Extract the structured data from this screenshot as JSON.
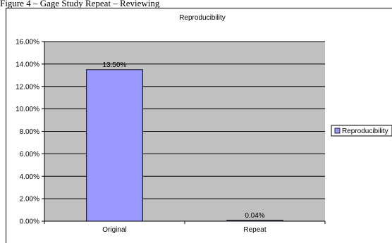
{
  "caption": "Figure 4 – Gage Study Repeat – Reviewing",
  "chart_data": {
    "type": "bar",
    "title": "Reproducibility",
    "categories": [
      "Original",
      "Repeat"
    ],
    "series": [
      {
        "name": "Reproducibility",
        "values": [
          13.5,
          0.04
        ],
        "color": "#9999ff"
      }
    ],
    "data_labels": [
      "13.50%",
      "0.04%"
    ],
    "y_ticks": [
      "0.00%",
      "2.00%",
      "4.00%",
      "6.00%",
      "8.00%",
      "10.00%",
      "12.00%",
      "14.00%",
      "16.00%"
    ],
    "ylim": [
      0,
      16
    ],
    "y_unit": "%",
    "plot_background": "#c0c0c0",
    "grid": true,
    "legend_position": "right",
    "xlabel": "",
    "ylabel": ""
  }
}
